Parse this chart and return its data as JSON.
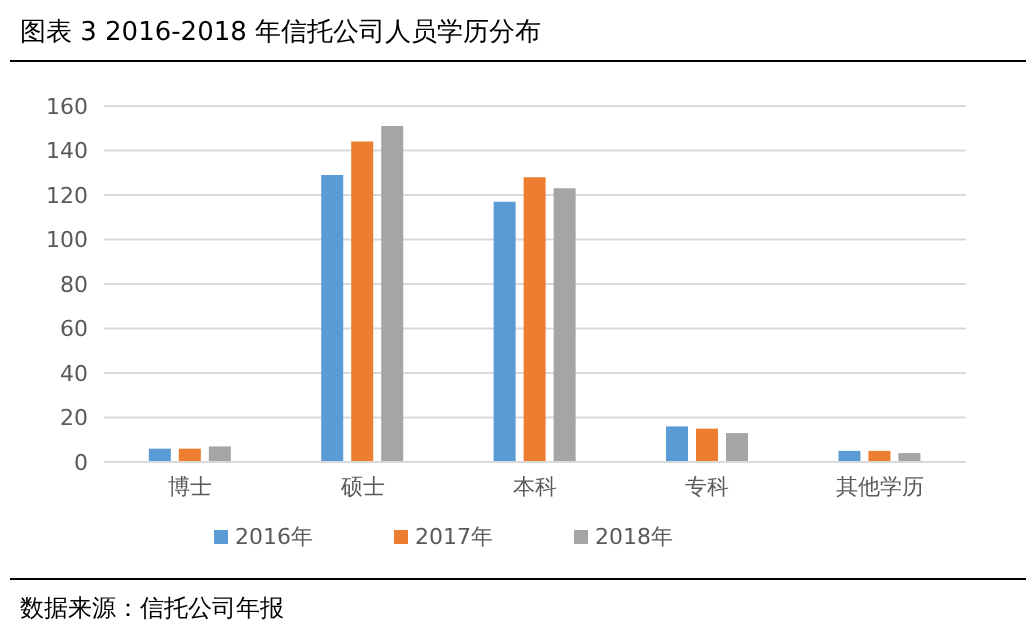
{
  "chart_data": {
    "type": "bar",
    "title": "图表 3  2016-2018 年信托公司人员学历分布",
    "categories": [
      "博士",
      "硕士",
      "本科",
      "专科",
      "其他学历"
    ],
    "series": [
      {
        "name": "2016年",
        "color": "#5b9bd5",
        "values": [
          6,
          129,
          117,
          16,
          5
        ]
      },
      {
        "name": "2017年",
        "color": "#ed7d31",
        "values": [
          6,
          144,
          128,
          15,
          5
        ]
      },
      {
        "name": "2018年",
        "color": "#a5a5a5",
        "values": [
          7,
          151,
          123,
          13,
          4
        ]
      }
    ],
    "ylim": [
      0,
      160
    ],
    "yticks": [
      0,
      20,
      40,
      60,
      80,
      100,
      120,
      140,
      160
    ],
    "grid": "y",
    "legend": "bottom",
    "annotations": [
      "数据来源：信托公司年报"
    ]
  }
}
